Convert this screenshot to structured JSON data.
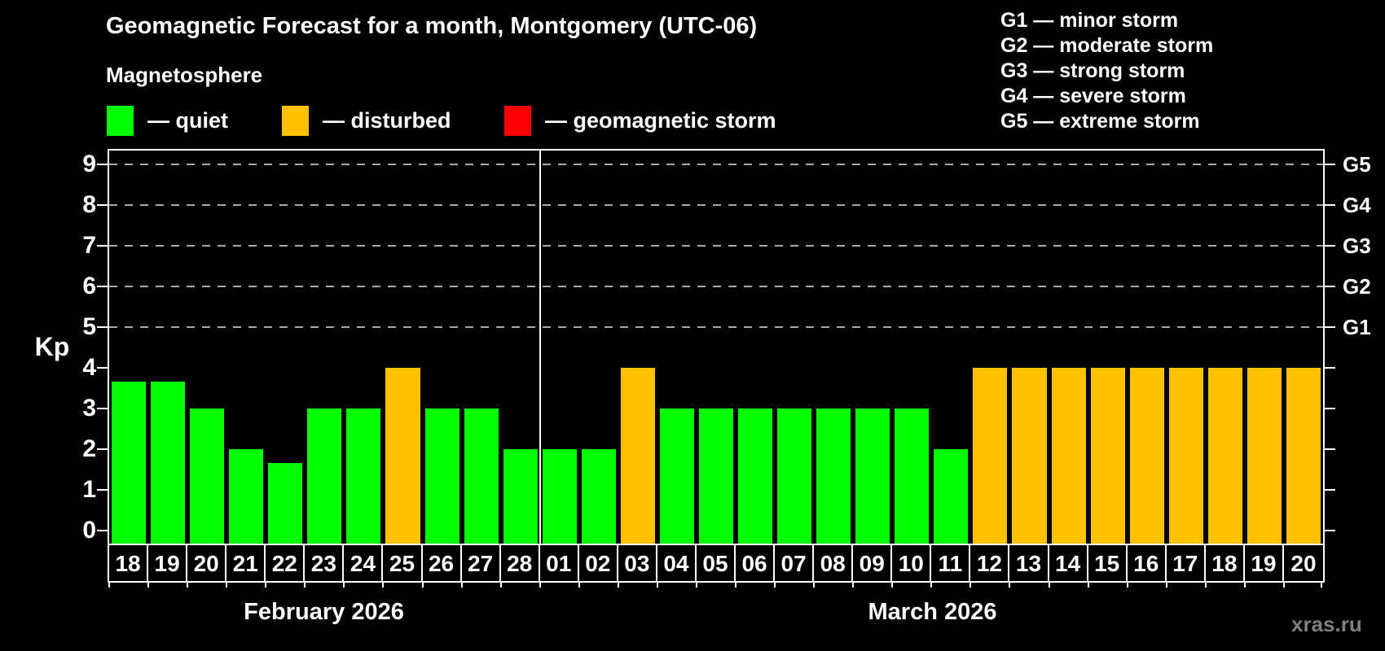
{
  "title": "Geomagnetic Forecast for a month, Montgomery (UTC-06)",
  "subtitle": "Magnetosphere",
  "legend": {
    "items": [
      {
        "key": "quiet",
        "label": "— quiet",
        "color": "#00ff00"
      },
      {
        "key": "disturbed",
        "label": "— disturbed",
        "color": "#ffc000"
      },
      {
        "key": "storm",
        "label": "— geomagnetic storm",
        "color": "#ff0000"
      }
    ]
  },
  "g_legend": [
    "G1 — minor storm",
    "G2 — moderate storm",
    "G3 — strong storm",
    "G4 — severe storm",
    "G5 — extreme storm"
  ],
  "watermark": "xras.ru",
  "chart_data": {
    "type": "bar",
    "ylabel": "Kp",
    "ylim": [
      0,
      9
    ],
    "yticks": [
      0,
      1,
      2,
      3,
      4,
      5,
      6,
      7,
      8,
      9
    ],
    "grid_kp": [
      5,
      6,
      7,
      8,
      9
    ],
    "right_axis": [
      {
        "label": "G1",
        "kp": 5
      },
      {
        "label": "G2",
        "kp": 6
      },
      {
        "label": "G3",
        "kp": 7
      },
      {
        "label": "G4",
        "kp": 8
      },
      {
        "label": "G5",
        "kp": 9
      }
    ],
    "months": [
      {
        "label": "February 2026",
        "days": [
          {
            "day": "18",
            "kp": 3.67,
            "status": "quiet"
          },
          {
            "day": "19",
            "kp": 3.67,
            "status": "quiet"
          },
          {
            "day": "20",
            "kp": 3,
            "status": "quiet"
          },
          {
            "day": "21",
            "kp": 2,
            "status": "quiet"
          },
          {
            "day": "22",
            "kp": 1.67,
            "status": "quiet"
          },
          {
            "day": "23",
            "kp": 3,
            "status": "quiet"
          },
          {
            "day": "24",
            "kp": 3,
            "status": "quiet"
          },
          {
            "day": "25",
            "kp": 4,
            "status": "disturbed"
          },
          {
            "day": "26",
            "kp": 3,
            "status": "quiet"
          },
          {
            "day": "27",
            "kp": 3,
            "status": "quiet"
          },
          {
            "day": "28",
            "kp": 2,
            "status": "quiet"
          }
        ]
      },
      {
        "label": "March 2026",
        "days": [
          {
            "day": "01",
            "kp": 2,
            "status": "quiet"
          },
          {
            "day": "02",
            "kp": 2,
            "status": "quiet"
          },
          {
            "day": "03",
            "kp": 4,
            "status": "disturbed"
          },
          {
            "day": "04",
            "kp": 3,
            "status": "quiet"
          },
          {
            "day": "05",
            "kp": 3,
            "status": "quiet"
          },
          {
            "day": "06",
            "kp": 3,
            "status": "quiet"
          },
          {
            "day": "07",
            "kp": 3,
            "status": "quiet"
          },
          {
            "day": "08",
            "kp": 3,
            "status": "quiet"
          },
          {
            "day": "09",
            "kp": 3,
            "status": "quiet"
          },
          {
            "day": "10",
            "kp": 3,
            "status": "quiet"
          },
          {
            "day": "11",
            "kp": 2,
            "status": "quiet"
          },
          {
            "day": "12",
            "kp": 4,
            "status": "disturbed"
          },
          {
            "day": "13",
            "kp": 4,
            "status": "disturbed"
          },
          {
            "day": "14",
            "kp": 4,
            "status": "disturbed"
          },
          {
            "day": "15",
            "kp": 4,
            "status": "disturbed"
          },
          {
            "day": "16",
            "kp": 4,
            "status": "disturbed"
          },
          {
            "day": "17",
            "kp": 4,
            "status": "disturbed"
          },
          {
            "day": "18",
            "kp": 4,
            "status": "disturbed"
          },
          {
            "day": "19",
            "kp": 4,
            "status": "disturbed"
          },
          {
            "day": "20",
            "kp": 4,
            "status": "disturbed"
          }
        ]
      }
    ]
  }
}
